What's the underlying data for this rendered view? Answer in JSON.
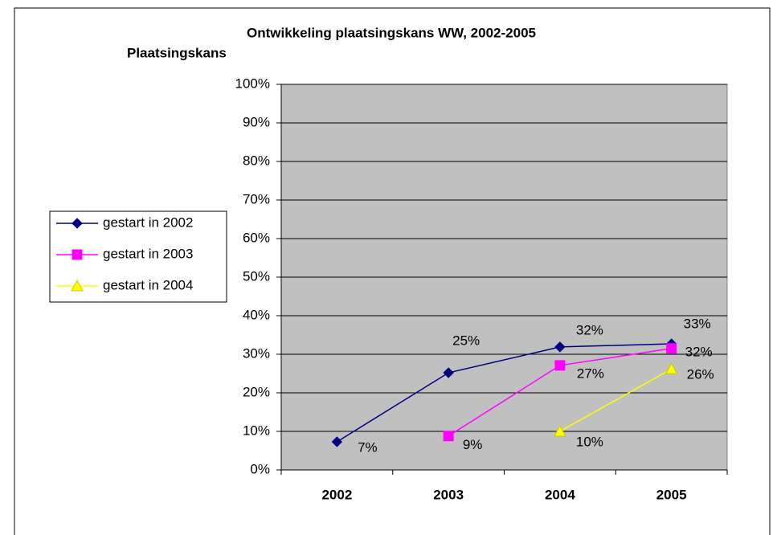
{
  "chart_data": {
    "type": "line",
    "title": "Ontwikkeling plaatsingskans WW, 2002-2005",
    "y_label": "Plaatsingskans",
    "categories": [
      "2002",
      "2003",
      "2004",
      "2005"
    ],
    "series": [
      {
        "name": "gestart in 2002",
        "color": "#000080",
        "marker": "diamond",
        "values": [
          7.3,
          25.2,
          31.9,
          32.7
        ],
        "value_labels": [
          "7%",
          "25%",
          "32%",
          "33%"
        ]
      },
      {
        "name": "gestart in 2003",
        "color": "#ff00ff",
        "marker": "square",
        "values": [
          null,
          8.8,
          27.1,
          31.5
        ],
        "value_labels": [
          null,
          "9%",
          "27%",
          "32%"
        ]
      },
      {
        "name": "gestart in 2004",
        "color": "#ffff00",
        "marker": "triangle",
        "values": [
          null,
          null,
          10,
          26.2
        ],
        "value_labels": [
          null,
          null,
          "10%",
          "26%"
        ]
      }
    ],
    "ylim": [
      0,
      100
    ],
    "yticks": [
      {
        "value": 0,
        "label": "0%"
      },
      {
        "value": 10,
        "label": "10%"
      },
      {
        "value": 20,
        "label": "20%"
      },
      {
        "value": 30,
        "label": "30%"
      },
      {
        "value": 40,
        "label": "40%"
      },
      {
        "value": 50,
        "label": "50%"
      },
      {
        "value": 60,
        "label": "60%"
      },
      {
        "value": 70,
        "label": "70%"
      },
      {
        "value": 80,
        "label": "80%"
      },
      {
        "value": 90,
        "label": "90%"
      },
      {
        "value": 100,
        "label": "100%"
      }
    ],
    "grid": true,
    "plot_background": "#c0c0c0",
    "legend": "left"
  }
}
